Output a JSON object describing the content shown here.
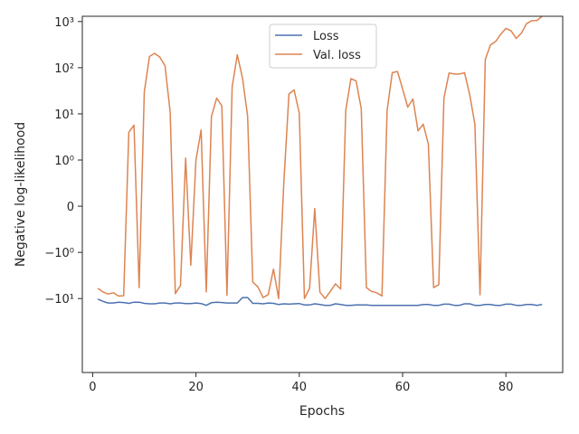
{
  "chart_data": {
    "type": "line",
    "title": "",
    "xlabel": "Epochs",
    "ylabel": "Negative log-likelihood",
    "y_scale": "symlog",
    "xlim": [
      -2,
      91
    ],
    "ylim": [
      -400,
      1300
    ],
    "x_ticks": [
      0,
      20,
      40,
      60,
      80
    ],
    "x_tick_labels": [
      "0",
      "20",
      "40",
      "60",
      "80"
    ],
    "y_ticks": [
      -10,
      -1,
      0,
      1,
      10,
      100,
      1000
    ],
    "y_tick_labels": [
      "−10¹",
      "−10⁰",
      "0",
      "10⁰",
      "10¹",
      "10²",
      "10³"
    ],
    "grid": false,
    "legend_position": "upper center",
    "series": [
      {
        "name": "Loss",
        "color": "#4c72b0",
        "x": [
          1,
          2,
          3,
          4,
          5,
          6,
          7,
          8,
          9,
          10,
          11,
          12,
          13,
          14,
          15,
          16,
          17,
          18,
          19,
          20,
          21,
          22,
          23,
          24,
          25,
          26,
          27,
          28,
          29,
          30,
          31,
          32,
          33,
          34,
          35,
          36,
          37,
          38,
          39,
          40,
          41,
          42,
          43,
          44,
          45,
          46,
          47,
          48,
          49,
          50,
          51,
          52,
          53,
          54,
          55,
          56,
          57,
          58,
          59,
          60,
          61,
          62,
          63,
          64,
          65,
          66,
          67,
          68,
          69,
          70,
          71,
          72,
          73,
          74,
          75,
          76,
          77,
          78,
          79,
          80,
          81,
          82,
          83,
          84,
          85,
          86,
          87
        ],
        "y": [
          -10.3,
          -11.5,
          -12.5,
          -12.5,
          -12,
          -12.2,
          -12.7,
          -12,
          -12,
          -12.7,
          -13,
          -13,
          -12.5,
          -12.5,
          -13,
          -12.5,
          -12.5,
          -12.8,
          -12.8,
          -12.5,
          -12.8,
          -14,
          -12.3,
          -12,
          -12.2,
          -12.5,
          -12.5,
          -12.5,
          -9.5,
          -9.5,
          -12.7,
          -12.7,
          -13,
          -12.5,
          -12.7,
          -13.5,
          -13,
          -13.2,
          -13,
          -12.8,
          -13.8,
          -13.8,
          -13,
          -13.5,
          -14,
          -14,
          -13,
          -13.5,
          -14,
          -14,
          -13.8,
          -13.8,
          -13.8,
          -14,
          -14,
          -14,
          -14,
          -14,
          -14,
          -14,
          -14,
          -14,
          -14,
          -13.5,
          -13.5,
          -14,
          -14,
          -13.2,
          -13.2,
          -14,
          -14,
          -13,
          -13,
          -14,
          -14,
          -13.5,
          -13.5,
          -14,
          -14,
          -13.2,
          -13.2,
          -14,
          -14,
          -13.5,
          -13.5,
          -14,
          -13.5
        ]
      },
      {
        "name": "Val. loss",
        "color": "#dd8452",
        "x": [
          1,
          2,
          3,
          4,
          5,
          6,
          7,
          8,
          9,
          10,
          11,
          12,
          13,
          14,
          15,
          16,
          17,
          18,
          19,
          20,
          21,
          22,
          23,
          24,
          25,
          26,
          27,
          28,
          29,
          30,
          31,
          32,
          33,
          34,
          35,
          36,
          37,
          38,
          39,
          40,
          41,
          42,
          43,
          44,
          45,
          46,
          47,
          48,
          49,
          50,
          51,
          52,
          53,
          54,
          55,
          56,
          57,
          58,
          59,
          60,
          61,
          62,
          63,
          64,
          65,
          66,
          67,
          68,
          69,
          70,
          71,
          72,
          73,
          74,
          75,
          76,
          77,
          78,
          79,
          80,
          81,
          82,
          83,
          84,
          85,
          86,
          87
        ],
        "y": [
          -6,
          -7.2,
          -8,
          -7.5,
          -8.8,
          -8.7,
          4,
          5.7,
          -5.8,
          30,
          175,
          205,
          170,
          110,
          11,
          -7.8,
          -5.2,
          1.1,
          -1.9,
          1,
          4.5,
          -7.2,
          8.7,
          22,
          15,
          -8.5,
          38,
          190,
          60,
          9,
          -4.4,
          -5.6,
          -9.5,
          -8.2,
          -2.3,
          -10,
          0.5,
          27,
          33,
          10.5,
          -10,
          -6,
          -0.05,
          -7.3,
          -10,
          -7,
          -4.8,
          -6.2,
          12,
          58,
          52,
          13,
          -5.8,
          -7,
          -7.5,
          -8.8,
          12,
          78,
          83,
          35,
          14,
          21,
          4.3,
          6,
          2.2,
          -5.8,
          -5,
          22,
          77,
          73,
          73,
          78,
          26,
          6,
          -8.3,
          150,
          310,
          370,
          530,
          710,
          630,
          430,
          560,
          900,
          1040,
          1050,
          1300
        ]
      }
    ]
  }
}
